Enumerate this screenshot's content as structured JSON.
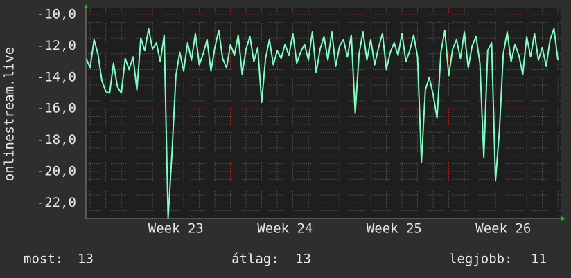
{
  "chart_data": {
    "type": "line",
    "y_label": "onlinestream.live",
    "xlim": [
      -2.27,
      28.22
    ],
    "ylim": [
      -23,
      -9.6
    ],
    "xticks": [
      {
        "value": 3.5,
        "label": "Week 23"
      },
      {
        "value": 10.5,
        "label": "Week 24"
      },
      {
        "value": 17.5,
        "label": "Week 25"
      },
      {
        "value": 24.5,
        "label": "Week 26"
      }
    ],
    "yticks": [
      {
        "value": -10,
        "label": "-10,0"
      },
      {
        "value": -12,
        "label": "-12,0"
      },
      {
        "value": -14,
        "label": "-14,0"
      },
      {
        "value": -16,
        "label": "-16,0"
      },
      {
        "value": -18,
        "label": "-18,0"
      },
      {
        "value": -20,
        "label": "-20,0"
      },
      {
        "value": -22,
        "label": "-22,0"
      }
    ],
    "grid": true,
    "x": [
      -2.25,
      -2,
      -1.75,
      -1.5,
      -1.25,
      -1,
      -0.75,
      -0.5,
      -0.25,
      0,
      0.25,
      0.5,
      0.75,
      1,
      1.25,
      1.5,
      1.75,
      2,
      2.25,
      2.5,
      2.75,
      3,
      3.25,
      3.5,
      3.75,
      4,
      4.25,
      4.5,
      4.75,
      5,
      5.25,
      5.5,
      5.75,
      6,
      6.25,
      6.5,
      6.75,
      7,
      7.25,
      7.5,
      7.75,
      8,
      8.25,
      8.5,
      8.75,
      9,
      9.25,
      9.5,
      9.75,
      10,
      10.25,
      10.5,
      10.75,
      11,
      11.25,
      11.5,
      11.75,
      12,
      12.25,
      12.5,
      12.75,
      13,
      13.25,
      13.5,
      13.75,
      14,
      14.25,
      14.5,
      14.75,
      15,
      15.25,
      15.5,
      15.75,
      16,
      16.25,
      16.5,
      16.75,
      17,
      17.25,
      17.5,
      17.75,
      18,
      18.25,
      18.5,
      18.75,
      19,
      19.25,
      19.5,
      19.75,
      20,
      20.25,
      20.5,
      20.75,
      21,
      21.25,
      21.5,
      21.75,
      22,
      22.25,
      22.5,
      22.75,
      23,
      23.25,
      23.5,
      23.75,
      24,
      24.25,
      24.5,
      24.75,
      25,
      25.25,
      25.5,
      25.75,
      26,
      26.25,
      26.5,
      26.75,
      27,
      27.25,
      27.5,
      27.75,
      28
    ],
    "series": [
      {
        "color": "#80ffc0",
        "values": [
          -12.8,
          -13.4,
          -11.6,
          -12.5,
          -14.2,
          -14.9,
          -15.0,
          -13.1,
          -14.6,
          -15.0,
          -12.8,
          -13.5,
          -12.7,
          -14.8,
          -11.5,
          -12.3,
          -10.9,
          -12.2,
          -11.8,
          -13.0,
          -11.3,
          -23.0,
          -18.8,
          -13.9,
          -12.4,
          -13.6,
          -11.8,
          -12.9,
          -11.2,
          -13.2,
          -12.5,
          -11.6,
          -13.6,
          -12.1,
          -11.0,
          -12.8,
          -13.4,
          -11.9,
          -12.6,
          -11.3,
          -13.8,
          -12.2,
          -11.4,
          -13.0,
          -12.1,
          -15.6,
          -12.8,
          -11.6,
          -13.2,
          -12.3,
          -12.8,
          -11.9,
          -12.6,
          -11.2,
          -13.1,
          -12.4,
          -11.9,
          -12.9,
          -11.1,
          -13.7,
          -12.2,
          -11.4,
          -12.9,
          -11.1,
          -13.3,
          -12.0,
          -11.6,
          -12.7,
          -11.3,
          -16.3,
          -12.5,
          -11.1,
          -12.9,
          -11.6,
          -13.2,
          -12.1,
          -11.2,
          -13.5,
          -12.4,
          -11.8,
          -12.6,
          -11.2,
          -13.0,
          -12.3,
          -11.3,
          -12.7,
          -19.4,
          -14.8,
          -14.0,
          -15.1,
          -16.6,
          -12.4,
          -11.0,
          -13.9,
          -12.2,
          -11.6,
          -12.8,
          -11.1,
          -13.4,
          -12.0,
          -11.4,
          -13.1,
          -19.1,
          -12.3,
          -11.8,
          -20.6,
          -17.4,
          -12.5,
          -11.1,
          -13.0,
          -11.9,
          -12.6,
          -13.8,
          -11.4,
          -12.7,
          -11.2,
          -12.9,
          -12.1,
          -13.3,
          -11.6,
          -10.9,
          -12.9
        ]
      }
    ]
  },
  "footer": [
    {
      "label": "most:",
      "value": 13
    },
    {
      "label": "átlag:",
      "value": 13
    },
    {
      "label": "legjobb:",
      "value": 11
    }
  ]
}
